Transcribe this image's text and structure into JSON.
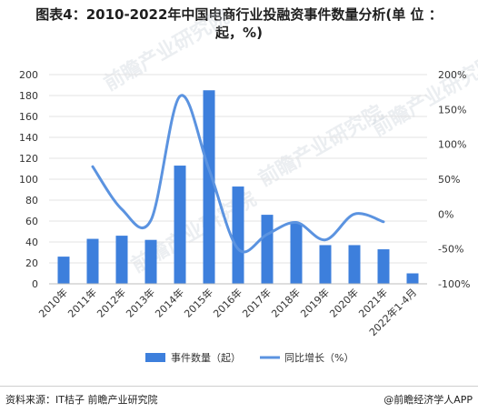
{
  "title_line1": "图表4：2010-2022年中国电商行业投融资事件数量分析(单 位 ：",
  "title_line2": "起，%)",
  "footer_source": "资料来源：IT桔子 前瞻产业研究院",
  "footer_brand": "@前瞻经济学人APP",
  "watermark_text": "前瞻产业研究院",
  "colors": {
    "bar": "#3d7fdc",
    "line": "#5b93e0",
    "grid": "#e3e3e3",
    "watermark": "#c8cfd8"
  },
  "chart_data": {
    "type": "bar+line",
    "categories": [
      "2010年",
      "2011年",
      "2012年",
      "2013年",
      "2014年",
      "2015年",
      "2016年",
      "2017年",
      "2018年",
      "2019年",
      "2020年",
      "2021年",
      "2022年1-4月"
    ],
    "series": [
      {
        "name": "事件数量（起）",
        "type": "bar",
        "axis": "left",
        "values": [
          26,
          43,
          46,
          42,
          113,
          185,
          93,
          66,
          58,
          37,
          37,
          33,
          10
        ]
      },
      {
        "name": "同比增长（%）",
        "type": "line",
        "axis": "right",
        "smooth": true,
        "values": [
          null,
          68,
          7,
          -9,
          169,
          64,
          -50,
          -29,
          -12,
          -37,
          0,
          -11,
          null
        ]
      }
    ],
    "y_left": {
      "min": 0,
      "max": 200,
      "step": 20,
      "ticks": [
        "0",
        "20",
        "40",
        "60",
        "80",
        "100",
        "120",
        "140",
        "160",
        "180",
        "200"
      ]
    },
    "y_right": {
      "min": -100,
      "max": 200,
      "step": 50,
      "ticks": [
        "-100%",
        "-50%",
        "0%",
        "50%",
        "100%",
        "150%",
        "200%"
      ]
    },
    "legend_position": "bottom-center",
    "grid": true
  }
}
